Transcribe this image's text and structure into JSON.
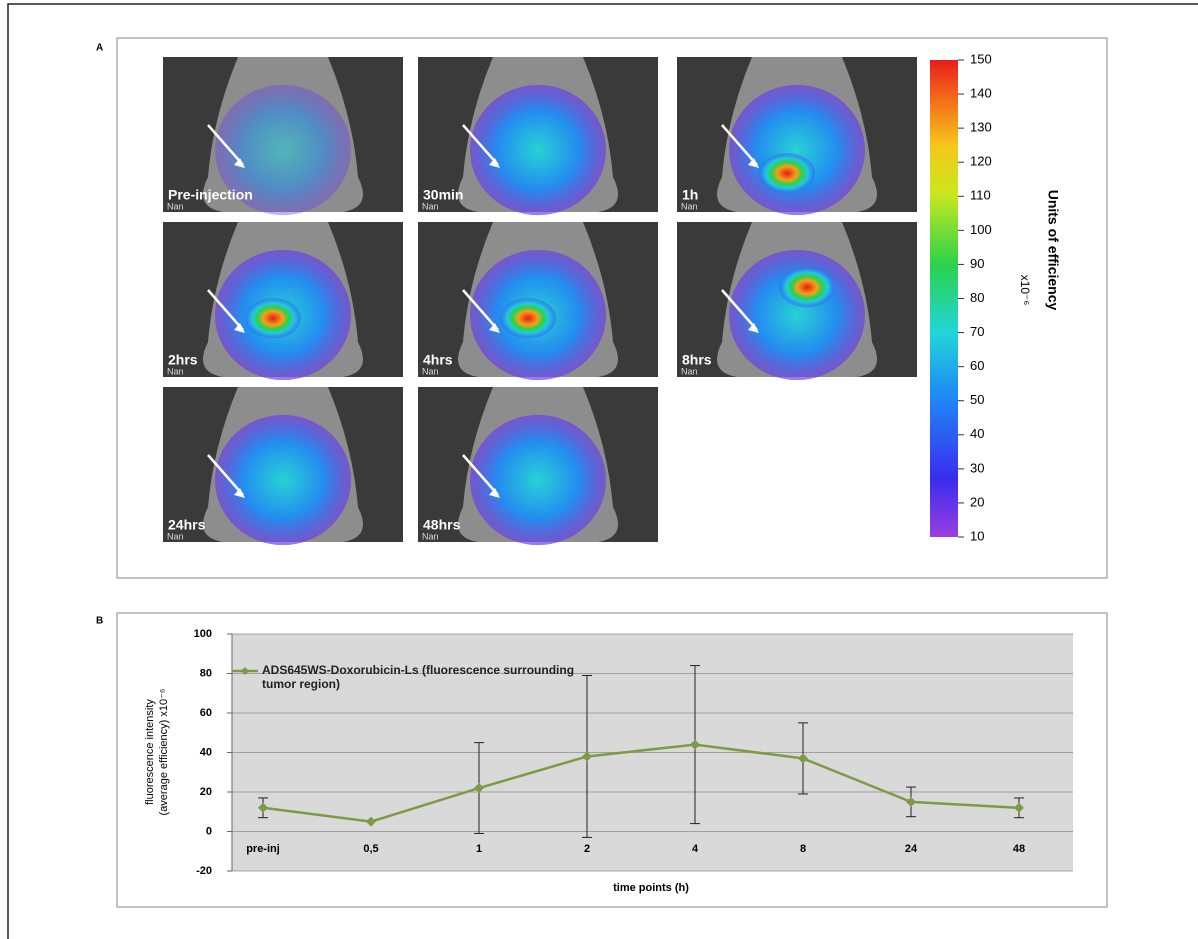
{
  "panel_a": {
    "label": "A",
    "images": [
      "Pre-injection",
      "30min",
      "1h",
      "2hrs",
      "4hrs",
      "8hrs",
      "24hrs",
      "48hrs"
    ],
    "image_note": "Nan",
    "colorbar": {
      "title": "Units of efficiency",
      "unit": "x10⁻⁶",
      "lim": [
        10,
        150
      ],
      "ticks": [
        10,
        20,
        30,
        40,
        50,
        60,
        70,
        80,
        90,
        100,
        110,
        120,
        130,
        140,
        150
      ]
    }
  },
  "chart_data": {
    "type": "line",
    "panel_label": "B",
    "x_label": "time points (h)",
    "y_label": [
      "fluorescence intensity",
      "(average efficiency) x10⁻⁶"
    ],
    "categories": [
      "pre-inj",
      "0,5",
      "1",
      "2",
      "4",
      "8",
      "24",
      "48"
    ],
    "series": [
      {
        "name": "ADS645WS-Doxorubicin-Ls (fluorescence surrounding tumor region)",
        "color": "#7d9a45",
        "values": [
          12,
          5,
          22,
          38,
          44,
          37,
          15,
          12
        ],
        "errors": [
          5,
          null,
          23,
          41,
          40,
          18,
          7.5,
          5
        ]
      }
    ],
    "ylim": [
      -20,
      100
    ],
    "yticks": [
      -20,
      0,
      20,
      40,
      60,
      80,
      100
    ],
    "grid": true
  }
}
